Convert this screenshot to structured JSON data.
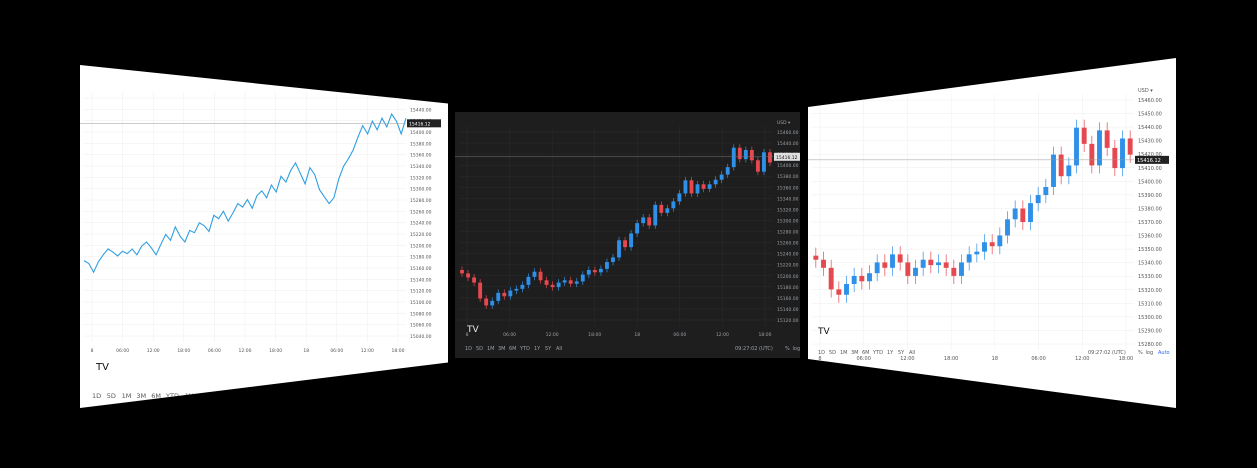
{
  "colors": {
    "page_bg": "#000000",
    "light_bg": "#ffffff",
    "dark_bg": "#1e1e1e",
    "line": "#2e9fe0",
    "up": "#2f90e8",
    "down": "#e5494f",
    "grid_light": "#eeeeee",
    "grid_dark": "#2c2c2c",
    "text_light": "#555555",
    "text_dark": "#9aa0a6",
    "accent": "#2962ff"
  },
  "toolbar": {
    "ranges": [
      "1D",
      "5D",
      "1M",
      "3M",
      "6M",
      "YTD",
      "1Y",
      "5Y",
      "All"
    ],
    "time": "09:27:02 (UTC)",
    "percent": "%",
    "log": "log",
    "auto": "Auto",
    "currency": "USD ▾",
    "logo": "TV"
  },
  "chart_data": [
    {
      "type": "line",
      "theme": "light",
      "xlabel_ticks": [
        "8",
        "06:00",
        "12:00",
        "18:00",
        "06:00",
        "12:00",
        "18:00",
        "18",
        "06:00",
        "12:00",
        "18:00"
      ],
      "y_ticks": [
        "15460.00",
        "15440.00",
        "15420.00",
        "15400.00",
        "15380.00",
        "15360.00",
        "15340.00",
        "15320.00",
        "15300.00",
        "15280.00",
        "15260.00",
        "15240.00",
        "15220.00",
        "15200.00",
        "15180.00",
        "15160.00",
        "15140.00",
        "15120.00",
        "15100.00",
        "15080.00",
        "15060.00",
        "15040.00"
      ],
      "last_price": "15416.12",
      "ylim": [
        15040,
        15470
      ],
      "values": [
        15180,
        15175,
        15160,
        15178,
        15190,
        15200,
        15195,
        15188,
        15196,
        15192,
        15200,
        15190,
        15205,
        15212,
        15202,
        15190,
        15208,
        15225,
        15215,
        15238,
        15222,
        15212,
        15232,
        15228,
        15245,
        15240,
        15230,
        15258,
        15252,
        15265,
        15248,
        15262,
        15278,
        15272,
        15285,
        15270,
        15292,
        15300,
        15288,
        15310,
        15298,
        15325,
        15315,
        15335,
        15348,
        15330,
        15312,
        15340,
        15328,
        15302,
        15290,
        15278,
        15288,
        15320,
        15342,
        15355,
        15370,
        15392,
        15412,
        15398,
        15420,
        15405,
        15425,
        15410,
        15432,
        15420,
        15398,
        15425
      ]
    },
    {
      "type": "candlestick",
      "theme": "dark",
      "xlabel_ticks": [
        "8",
        "06:00",
        "12:00",
        "18:00",
        "18",
        "06:00",
        "12:00",
        "18:00"
      ],
      "y_ticks": [
        "15460.00",
        "15440.00",
        "15420.00",
        "15400.00",
        "15380.00",
        "15360.00",
        "15340.00",
        "15320.00",
        "15300.00",
        "15280.00",
        "15260.00",
        "15240.00",
        "15220.00",
        "15200.00",
        "15180.00",
        "15160.00",
        "15140.00",
        "15120.00"
      ],
      "last_price": "15416.12",
      "ylim": [
        15120,
        15470
      ],
      "candles": [
        [
          15218,
          15212
        ],
        [
          15212,
          15205
        ],
        [
          15205,
          15196
        ],
        [
          15196,
          15168
        ],
        [
          15168,
          15156
        ],
        [
          15156,
          15164
        ],
        [
          15164,
          15178
        ],
        [
          15178,
          15172
        ],
        [
          15172,
          15182
        ],
        [
          15182,
          15185
        ],
        [
          15185,
          15192
        ],
        [
          15192,
          15206
        ],
        [
          15206,
          15215
        ],
        [
          15215,
          15200
        ],
        [
          15200,
          15192
        ],
        [
          15192,
          15188
        ],
        [
          15188,
          15196
        ],
        [
          15196,
          15200
        ],
        [
          15200,
          15194
        ],
        [
          15194,
          15198
        ],
        [
          15198,
          15210
        ],
        [
          15210,
          15218
        ],
        [
          15218,
          15214
        ],
        [
          15214,
          15220
        ],
        [
          15220,
          15232
        ],
        [
          15232,
          15240
        ],
        [
          15240,
          15270
        ],
        [
          15270,
          15258
        ],
        [
          15258,
          15282
        ],
        [
          15282,
          15300
        ],
        [
          15300,
          15310
        ],
        [
          15310,
          15296
        ],
        [
          15296,
          15332
        ],
        [
          15332,
          15318
        ],
        [
          15318,
          15326
        ],
        [
          15326,
          15338
        ],
        [
          15338,
          15352
        ],
        [
          15352,
          15375
        ],
        [
          15375,
          15352
        ],
        [
          15352,
          15368
        ],
        [
          15368,
          15360
        ],
        [
          15360,
          15368
        ],
        [
          15368,
          15376
        ],
        [
          15376,
          15385
        ],
        [
          15385,
          15398
        ],
        [
          15398,
          15432
        ],
        [
          15432,
          15412
        ],
        [
          15412,
          15428
        ],
        [
          15428,
          15410
        ],
        [
          15410,
          15390
        ],
        [
          15390,
          15424
        ],
        [
          15424,
          15406
        ]
      ]
    },
    {
      "type": "candlestick",
      "theme": "light",
      "xlabel_ticks": [
        "8",
        "06:00",
        "12:00",
        "18:00",
        "18",
        "06:00",
        "12:00",
        "18:00"
      ],
      "y_ticks": [
        "15460.00",
        "15450.00",
        "15440.00",
        "15430.00",
        "15420.00",
        "15410.00",
        "15400.00",
        "15390.00",
        "15380.00",
        "15370.00",
        "15360.00",
        "15350.00",
        "15340.00",
        "15330.00",
        "15320.00",
        "15310.00",
        "15300.00",
        "15290.00",
        "15280.00"
      ],
      "last_price": "15416.12",
      "ylim": [
        15275,
        15465
      ],
      "candles": [
        [
          15345,
          15342
        ],
        [
          15342,
          15336
        ],
        [
          15336,
          15320
        ],
        [
          15320,
          15316
        ],
        [
          15316,
          15324
        ],
        [
          15324,
          15330
        ],
        [
          15330,
          15326
        ],
        [
          15326,
          15332
        ],
        [
          15332,
          15340
        ],
        [
          15340,
          15336
        ],
        [
          15336,
          15346
        ],
        [
          15346,
          15340
        ],
        [
          15340,
          15330
        ],
        [
          15330,
          15336
        ],
        [
          15336,
          15342
        ],
        [
          15342,
          15338
        ],
        [
          15338,
          15340
        ],
        [
          15340,
          15336
        ],
        [
          15336,
          15330
        ],
        [
          15330,
          15340
        ],
        [
          15340,
          15346
        ],
        [
          15346,
          15348
        ],
        [
          15348,
          15355
        ],
        [
          15355,
          15352
        ],
        [
          15352,
          15360
        ],
        [
          15360,
          15372
        ],
        [
          15372,
          15380
        ],
        [
          15380,
          15370
        ],
        [
          15370,
          15384
        ],
        [
          15384,
          15390
        ],
        [
          15390,
          15396
        ],
        [
          15396,
          15420
        ],
        [
          15420,
          15404
        ],
        [
          15404,
          15412
        ],
        [
          15412,
          15440
        ],
        [
          15440,
          15428
        ],
        [
          15428,
          15412
        ],
        [
          15412,
          15438
        ],
        [
          15438,
          15425
        ],
        [
          15425,
          15410
        ],
        [
          15410,
          15432
        ],
        [
          15432,
          15420
        ]
      ]
    }
  ]
}
